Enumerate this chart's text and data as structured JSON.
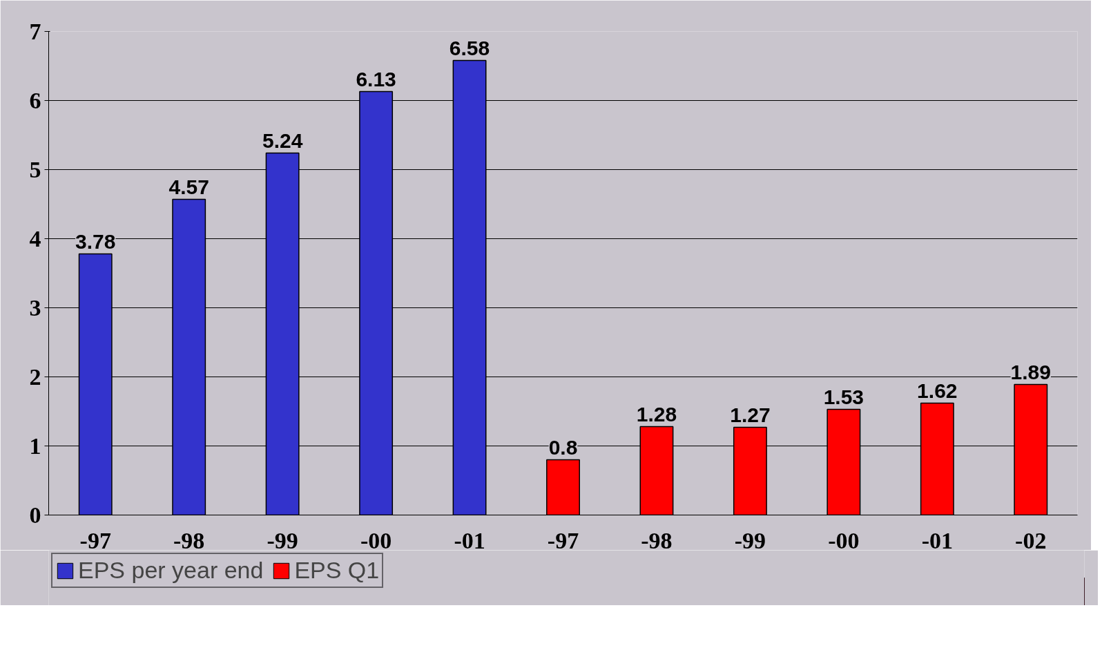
{
  "chart_data": {
    "type": "bar",
    "categories": [
      "-97",
      "-98",
      "-99",
      "-00",
      "-01",
      "-97",
      "-98",
      "-99",
      "-00",
      "-01",
      "-02"
    ],
    "series": [
      {
        "name": "EPS per year end",
        "color": "#3333cc",
        "values": [
          3.78,
          4.57,
          5.24,
          6.13,
          6.58,
          null,
          null,
          null,
          null,
          null,
          null
        ]
      },
      {
        "name": "EPS Q1",
        "color": "#ff0000",
        "values": [
          null,
          null,
          null,
          null,
          null,
          0.8,
          1.28,
          1.27,
          1.53,
          1.62,
          1.89
        ]
      }
    ],
    "ylim": [
      0,
      7
    ],
    "yticks": [
      0,
      1,
      2,
      3,
      4,
      5,
      6,
      7
    ],
    "grid": "y",
    "legend": "bottom left",
    "data_labels": true
  }
}
